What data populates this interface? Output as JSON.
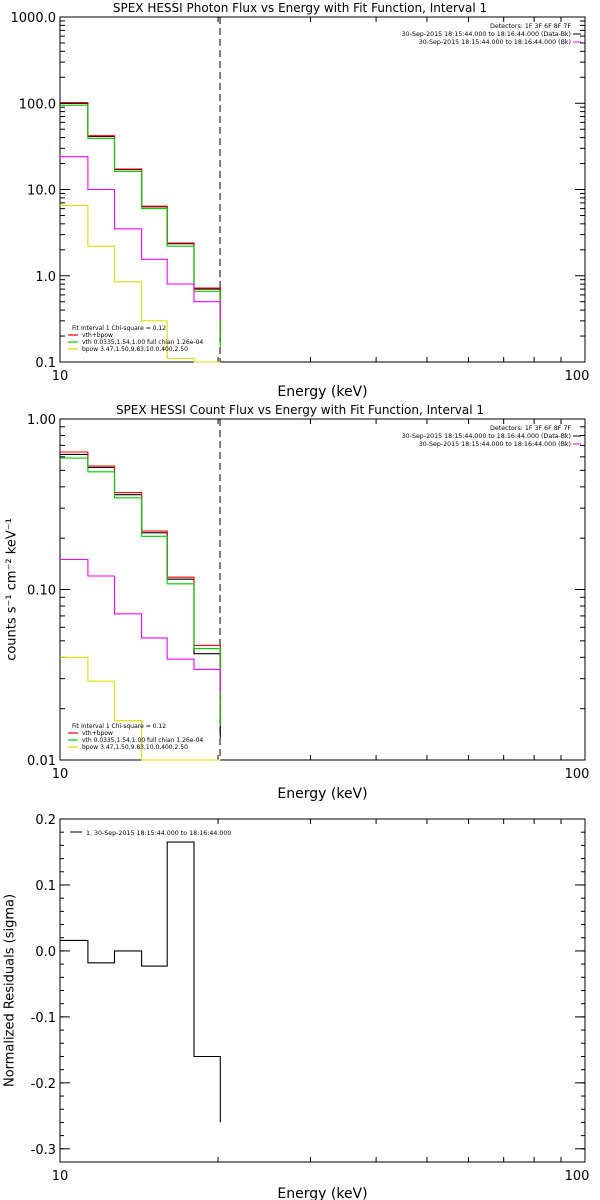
{
  "colors": {
    "data": "#000000",
    "total": "#ff0000",
    "vth": "#00cc00",
    "bpow": "#dddd00",
    "background": "#ff00ff"
  },
  "chart_data": [
    {
      "id": "photon",
      "type": "line",
      "title": "SPEX HESSI Photon Flux vs Energy with Fit Function, Interval 1",
      "xlabel": "Energy (keV)",
      "ylabel": "",
      "xscale": "log",
      "yscale": "log",
      "xlim": [
        10,
        100
      ],
      "ylim": [
        0.1,
        1000
      ],
      "xticks": [
        "10",
        "100"
      ],
      "yticks": [
        {
          "v": 0.1,
          "label": "0.1"
        },
        {
          "v": 1,
          "label": "1.0"
        },
        {
          "v": 10,
          "label": "10.0"
        },
        {
          "v": 100,
          "label": "100.0"
        },
        {
          "v": 1000,
          "label": "1000.0"
        }
      ],
      "vline": 20,
      "edges": [
        10,
        11.3,
        12.7,
        14.3,
        16.0,
        18.0,
        20.2
      ],
      "legend_top": [
        {
          "text": "Detectors: 1F 3F 6F 8F 7F",
          "color": ""
        },
        {
          "text": "30-Sep-2015 18:15:44.000 to 18:16:44.000 (Data-Bk)",
          "color": "#000000"
        },
        {
          "text": "30-Sep-2015 18:15:44.000 to 18:16:44.000 (Bk)",
          "color": "#ff00ff"
        }
      ],
      "legend_bottom": [
        {
          "text": "Fit Interval 1   Chi-square = 0.12",
          "color": ""
        },
        {
          "text": "vth+bpow",
          "color": "#ff0000"
        },
        {
          "text": "vth 0.0335,1.54,1.00  full chian 1.26e-04",
          "color": "#00cc00"
        },
        {
          "text": "bpow 3.47,1.50,9.83,10.0,400,2.50",
          "color": "#dddd00"
        }
      ],
      "series": [
        {
          "key": "data",
          "values": [
            100,
            41,
            17,
            6.3,
            2.35,
            0.7,
            0.17
          ]
        },
        {
          "key": "total",
          "values": [
            102,
            42,
            17.3,
            6.4,
            2.4,
            0.72,
            0.19
          ]
        },
        {
          "key": "vth",
          "values": [
            95,
            39,
            16.2,
            6.0,
            2.2,
            0.66,
            0.15
          ]
        },
        {
          "key": "background",
          "values": [
            24,
            10,
            3.5,
            1.55,
            0.8,
            0.5,
            0.3
          ]
        },
        {
          "key": "bpow",
          "values": [
            6.5,
            2.2,
            0.85,
            0.3,
            0.11,
            0.1,
            0.1
          ]
        }
      ]
    },
    {
      "id": "count",
      "type": "line",
      "title": "SPEX HESSI Count Flux vs Energy with Fit Function, Interval 1",
      "xlabel": "Energy (keV)",
      "ylabel": "counts s⁻¹ cm⁻² keV⁻¹",
      "xscale": "log",
      "yscale": "log",
      "xlim": [
        10,
        100
      ],
      "ylim": [
        0.01,
        1
      ],
      "xticks": [
        "10",
        "100"
      ],
      "yticks": [
        {
          "v": 0.01,
          "label": "0.01"
        },
        {
          "v": 0.1,
          "label": "0.10"
        },
        {
          "v": 1,
          "label": "1.00"
        }
      ],
      "vline": 20,
      "edges": [
        10,
        11.3,
        12.7,
        14.3,
        16.0,
        18.0,
        20.2
      ],
      "legend_top": [
        {
          "text": "Detectors: 1F 3F 6F 8F 7F",
          "color": ""
        },
        {
          "text": "30-Sep-2015 18:15:44.000 to 18:16:44.000 (Data-Bk)",
          "color": "#000000"
        },
        {
          "text": "30-Sep-2015 18:15:44.000 to 18:16:44.000 (Bk)",
          "color": "#ff00ff"
        }
      ],
      "legend_bottom": [
        {
          "text": "Fit Interval 1   Chi-square = 0.12",
          "color": ""
        },
        {
          "text": "vth+bpow",
          "color": "#ff0000"
        },
        {
          "text": "vth 0.0335,1.54,1.00  full chian 1.26e-04",
          "color": "#00cc00"
        },
        {
          "text": "bpow 3.47,1.50,9.83,10.0,400,2.50",
          "color": "#dddd00"
        }
      ],
      "series": [
        {
          "key": "data",
          "values": [
            0.62,
            0.52,
            0.36,
            0.215,
            0.115,
            0.042,
            0.0135
          ]
        },
        {
          "key": "total",
          "values": [
            0.64,
            0.53,
            0.37,
            0.22,
            0.118,
            0.047,
            0.017
          ]
        },
        {
          "key": "vth",
          "values": [
            0.59,
            0.49,
            0.345,
            0.205,
            0.108,
            0.045,
            0.016
          ]
        },
        {
          "key": "background",
          "values": [
            0.15,
            0.12,
            0.072,
            0.052,
            0.039,
            0.034,
            0.025
          ]
        },
        {
          "key": "bpow",
          "values": [
            0.04,
            0.029,
            0.017,
            0.0095,
            0.009,
            0.009,
            0.009
          ]
        }
      ]
    },
    {
      "id": "resid",
      "type": "line",
      "title": "",
      "xlabel": "Energy (keV)",
      "ylabel": "Normalized Residuals (sigma)",
      "xscale": "log",
      "yscale": "linear",
      "xlim": [
        10,
        100
      ],
      "ylim": [
        -0.32,
        0.2
      ],
      "xticks": [
        "10",
        "100"
      ],
      "yticks": [
        {
          "v": 0.2,
          "label": "0.2"
        },
        {
          "v": 0.1,
          "label": "0.1"
        },
        {
          "v": 0.0,
          "label": "0.0"
        },
        {
          "v": -0.1,
          "label": "-0.1"
        },
        {
          "v": -0.2,
          "label": "-0.2"
        },
        {
          "v": -0.3,
          "label": "-0.3"
        }
      ],
      "vline": null,
      "edges": [
        10,
        11.3,
        12.7,
        14.3,
        16.0,
        18.0,
        20.2
      ],
      "legend_top": [
        {
          "text": "1. 30-Sep-2015 18:15:44.000 to 18:16:44.000",
          "color": "#000000"
        }
      ],
      "legend_bottom": [],
      "series": [
        {
          "key": "data",
          "values": [
            0.016,
            -0.018,
            0.0,
            -0.023,
            0.165,
            -0.16,
            -0.26
          ]
        }
      ]
    }
  ]
}
